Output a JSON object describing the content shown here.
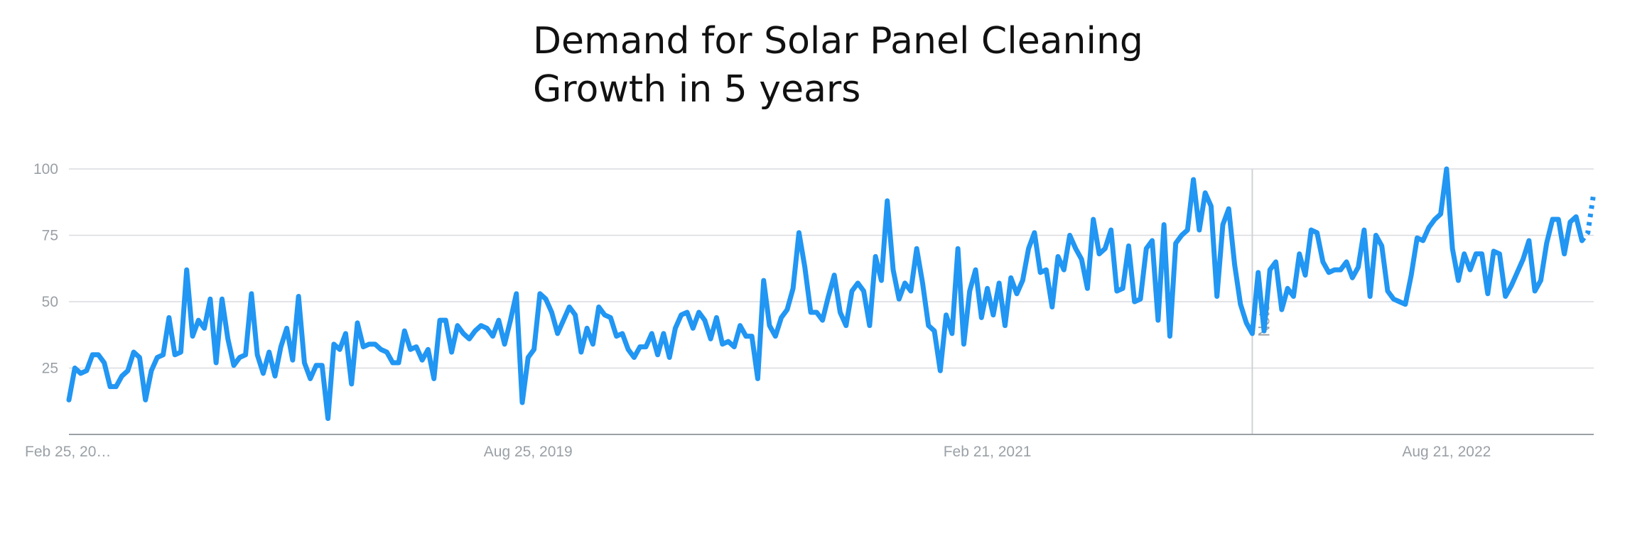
{
  "title": {
    "line1": "Demand for Solar Panel Cleaning",
    "line2": "Growth in 5 years"
  },
  "chart_data": {
    "type": "line",
    "title": "Demand for Solar Panel Cleaning Growth in 5 years",
    "xlabel": "",
    "ylabel": "",
    "ylim": [
      0,
      100
    ],
    "y_ticks": [
      25,
      50,
      75,
      100
    ],
    "x_tick_labels": [
      "Feb 25, 20…",
      "Aug 25, 2019",
      "Feb 21, 2021",
      "Aug 21, 2022"
    ],
    "x_tick_weeks": [
      0,
      78,
      156,
      234
    ],
    "annotation": {
      "label": "Note",
      "week": 201
    },
    "grid": true,
    "legend": "none",
    "line_color": "#2196f3",
    "partial_data_weeks": [
      258,
      259
    ],
    "series": [
      {
        "values": [
          13,
          25,
          23,
          24,
          30,
          30,
          27,
          18,
          18,
          22,
          24,
          31,
          29,
          13,
          24,
          29,
          30,
          44,
          30,
          31,
          62,
          37,
          43,
          40,
          51,
          27,
          51,
          36,
          26,
          29,
          30,
          53,
          30,
          23,
          31,
          22,
          33,
          40,
          28,
          52,
          27,
          21,
          26,
          26,
          6,
          34,
          32,
          38,
          19,
          42,
          33,
          34,
          34,
          32,
          31,
          27,
          27,
          39,
          32,
          33,
          28,
          32,
          21,
          43,
          43,
          31,
          41,
          38,
          36,
          39,
          41,
          40,
          37,
          43,
          34,
          43,
          53,
          12,
          29,
          32,
          53,
          51,
          46,
          38,
          43,
          48,
          45,
          31,
          40,
          34,
          48,
          45,
          44,
          37,
          38,
          32,
          29,
          33,
          33,
          38,
          30,
          38,
          29,
          40,
          45,
          46,
          40,
          46,
          43,
          36,
          44,
          34,
          35,
          33,
          41,
          37,
          37,
          21,
          58,
          41,
          37,
          44,
          47,
          55,
          76,
          63,
          46,
          46,
          43,
          52,
          60,
          46,
          41,
          54,
          57,
          54,
          41,
          67,
          58,
          88,
          62,
          51,
          57,
          54,
          70,
          57,
          41,
          39,
          24,
          45,
          38,
          70,
          34,
          54,
          62,
          44,
          55,
          45,
          57,
          41,
          59,
          53,
          58,
          70,
          76,
          61,
          62,
          48,
          67,
          62,
          75,
          70,
          66,
          55,
          81,
          68,
          70,
          77,
          54,
          55,
          71,
          50,
          51,
          70,
          73,
          43,
          79,
          37,
          72,
          75,
          77,
          96,
          77,
          91,
          86,
          52,
          79,
          85,
          64,
          49,
          42,
          38,
          61,
          39,
          62,
          65,
          47,
          55,
          52,
          68,
          60,
          77,
          76,
          65,
          61,
          62,
          62,
          65,
          59,
          63,
          77,
          52,
          75,
          71,
          54,
          51,
          50,
          49,
          60,
          74,
          73,
          78,
          81,
          83,
          100,
          70,
          58,
          68,
          62,
          68,
          68,
          53,
          69,
          68,
          52,
          56,
          61,
          66,
          73,
          54,
          58,
          72,
          81,
          81,
          68,
          80,
          82,
          73,
          76,
          91
        ]
      }
    ]
  }
}
